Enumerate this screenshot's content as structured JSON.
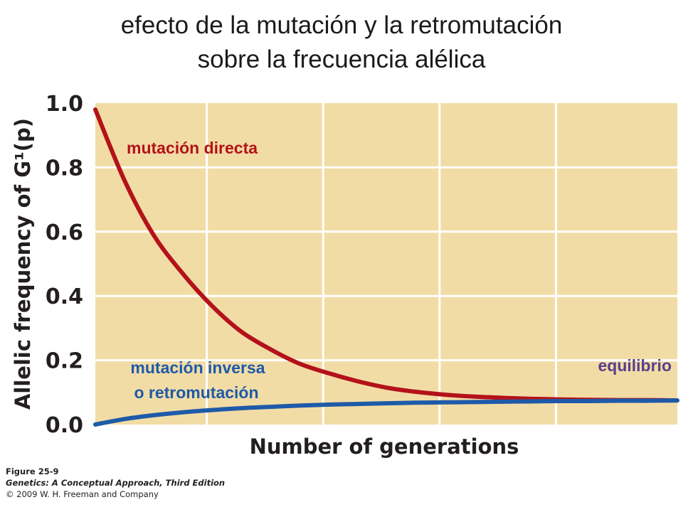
{
  "title_lines": [
    "efecto de la mutación y la retromutación",
    "sobre la frecuencia alélica"
  ],
  "caption": {
    "figure": "Figure 25-9",
    "book": "Genetics: A Conceptual Approach, Third Edition",
    "copyright": "© 2009 W. H. Freeman and Company"
  },
  "colors": {
    "plot_background": "#f2dca6",
    "grid": "#ffffff",
    "forward_curve": "#b3121a",
    "reverse_curve": "#1e5aa8",
    "equilibrium_label": "#5a3f8a"
  },
  "chart_data": {
    "type": "line",
    "title": "",
    "xlabel": "Number of generations",
    "ylabel": "Allelic frequency of G¹(p)",
    "xlim": [
      0,
      1
    ],
    "ylim": [
      0,
      1
    ],
    "x_ticks_shown": false,
    "grid": true,
    "yticks": [
      "0.0",
      "0.2",
      "0.4",
      "0.6",
      "0.8",
      "1.0"
    ],
    "series": [
      {
        "name": "mutación directa",
        "color": "#b3121a",
        "x": [
          0,
          0.05,
          0.1,
          0.15,
          0.2,
          0.25,
          0.3,
          0.35,
          0.4,
          0.45,
          0.5,
          0.55,
          0.6,
          0.65,
          0.7,
          0.75,
          0.8,
          0.85,
          0.9,
          0.95,
          1.0
        ],
        "y": [
          0.98,
          0.76,
          0.59,
          0.47,
          0.37,
          0.29,
          0.235,
          0.19,
          0.16,
          0.135,
          0.115,
          0.102,
          0.093,
          0.087,
          0.083,
          0.08,
          0.078,
          0.077,
          0.076,
          0.076,
          0.075
        ]
      },
      {
        "name": "mutación inversa o retromutación",
        "color": "#1e5aa8",
        "x": [
          0,
          0.05,
          0.1,
          0.15,
          0.2,
          0.25,
          0.3,
          0.35,
          0.4,
          0.45,
          0.5,
          0.55,
          0.6,
          0.65,
          0.7,
          0.75,
          0.8,
          0.85,
          0.9,
          0.95,
          1.0
        ],
        "y": [
          0.0,
          0.017,
          0.029,
          0.038,
          0.045,
          0.051,
          0.055,
          0.059,
          0.062,
          0.064,
          0.066,
          0.068,
          0.069,
          0.07,
          0.071,
          0.072,
          0.073,
          0.073,
          0.074,
          0.074,
          0.075
        ]
      }
    ],
    "annotations": [
      {
        "text": "mutación directa",
        "color": "#b3121a"
      },
      {
        "text": "mutación inversa",
        "color": "#1e5aa8"
      },
      {
        "text": "o retromutación",
        "color": "#1e5aa8"
      },
      {
        "text": "equilibrio",
        "color": "#5a3f8a"
      }
    ]
  }
}
